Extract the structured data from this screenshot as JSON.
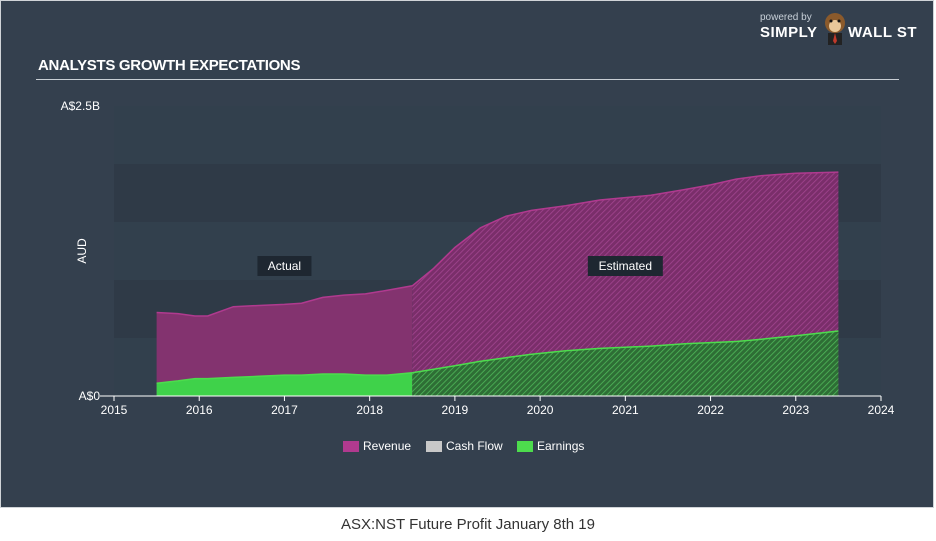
{
  "header": {
    "title": "ANALYSTS GROWTH EXPECTATIONS"
  },
  "brand": {
    "powered": "powered by",
    "name_left": "SIMPLY",
    "name_right": "WALL ST"
  },
  "caption": "ASX:NST Future Profit January 8th 19",
  "colors": {
    "revenue": "#b03a8f",
    "cash_flow": "#c8c8c8",
    "earnings": "#4ddc4d",
    "background": "#34404e"
  },
  "chart_data": {
    "type": "area",
    "title": "ANALYSTS GROWTH EXPECTATIONS",
    "xlabel": "",
    "ylabel": "AUD",
    "x_ticks": [
      "2015",
      "2016",
      "2017",
      "2018",
      "2019",
      "2020",
      "2021",
      "2022",
      "2023",
      "2024"
    ],
    "y_ticks": [
      "A$0",
      "A$2.5B"
    ],
    "xlim": [
      2015,
      2024
    ],
    "ylim": [
      0,
      2.5
    ],
    "y_unit": "A$ billions",
    "grid": true,
    "legend": "bottom-center",
    "actual_end": 2018.5,
    "annotations": [
      {
        "text": "Actual",
        "x": 2017.0
      },
      {
        "text": "Estimated",
        "x": 2021.0
      }
    ],
    "series": [
      {
        "name": "Revenue",
        "x": [
          2015.5,
          2015.75,
          2015.95,
          2016.1,
          2016.4,
          2016.7,
          2017.0,
          2017.2,
          2017.45,
          2017.7,
          2017.95,
          2018.2,
          2018.5,
          2018.75,
          2019.0,
          2019.3,
          2019.6,
          2019.9,
          2020.3,
          2020.7,
          2021.0,
          2021.3,
          2021.7,
          2022.0,
          2022.3,
          2022.6,
          2023.0,
          2023.5
        ],
        "values": [
          0.72,
          0.71,
          0.69,
          0.69,
          0.77,
          0.78,
          0.79,
          0.8,
          0.85,
          0.87,
          0.88,
          0.91,
          0.95,
          1.1,
          1.28,
          1.45,
          1.55,
          1.6,
          1.64,
          1.69,
          1.71,
          1.73,
          1.78,
          1.82,
          1.87,
          1.9,
          1.92,
          1.93
        ]
      },
      {
        "name": "Cash Flow",
        "x": [],
        "values": []
      },
      {
        "name": "Earnings",
        "x": [
          2015.5,
          2015.75,
          2015.95,
          2016.1,
          2016.4,
          2016.7,
          2017.0,
          2017.2,
          2017.45,
          2017.7,
          2017.95,
          2018.2,
          2018.5,
          2018.75,
          2019.0,
          2019.3,
          2019.6,
          2019.9,
          2020.3,
          2020.7,
          2021.0,
          2021.3,
          2021.7,
          2022.0,
          2022.3,
          2022.6,
          2023.0,
          2023.5
        ],
        "values": [
          0.11,
          0.13,
          0.15,
          0.15,
          0.16,
          0.17,
          0.18,
          0.18,
          0.19,
          0.19,
          0.18,
          0.18,
          0.2,
          0.23,
          0.26,
          0.3,
          0.33,
          0.36,
          0.39,
          0.41,
          0.42,
          0.43,
          0.45,
          0.46,
          0.47,
          0.49,
          0.52,
          0.56
        ]
      }
    ]
  }
}
